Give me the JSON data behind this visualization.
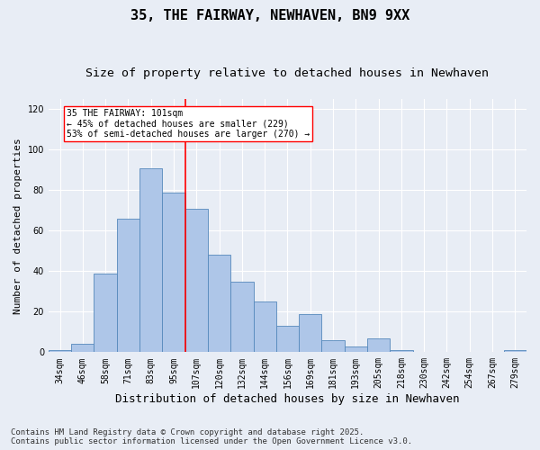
{
  "title": "35, THE FAIRWAY, NEWHAVEN, BN9 9XX",
  "subtitle": "Size of property relative to detached houses in Newhaven",
  "xlabel": "Distribution of detached houses by size in Newhaven",
  "ylabel": "Number of detached properties",
  "footer_line1": "Contains HM Land Registry data © Crown copyright and database right 2025.",
  "footer_line2": "Contains public sector information licensed under the Open Government Licence v3.0.",
  "categories": [
    "34sqm",
    "46sqm",
    "58sqm",
    "71sqm",
    "83sqm",
    "95sqm",
    "107sqm",
    "120sqm",
    "132sqm",
    "144sqm",
    "156sqm",
    "169sqm",
    "181sqm",
    "193sqm",
    "205sqm",
    "218sqm",
    "230sqm",
    "242sqm",
    "254sqm",
    "267sqm",
    "279sqm"
  ],
  "values": [
    1,
    4,
    39,
    66,
    91,
    79,
    71,
    48,
    35,
    25,
    13,
    19,
    6,
    3,
    7,
    1,
    0,
    0,
    0,
    0,
    1
  ],
  "bar_color": "#aec6e8",
  "bar_edge_color": "#5588bb",
  "vline_color": "red",
  "vline_x_idx": 5.5,
  "annotation_text": "35 THE FAIRWAY: 101sqm\n← 45% of detached houses are smaller (229)\n53% of semi-detached houses are larger (270) →",
  "annotation_box_color": "white",
  "annotation_box_edge": "red",
  "ylim": [
    0,
    125
  ],
  "yticks": [
    0,
    20,
    40,
    60,
    80,
    100,
    120
  ],
  "background_color": "#e8edf5",
  "plot_bg_color": "#e8edf5",
  "grid_color": "white",
  "title_fontsize": 11,
  "subtitle_fontsize": 9.5,
  "xlabel_fontsize": 9,
  "ylabel_fontsize": 8,
  "tick_fontsize": 7,
  "annot_fontsize": 7,
  "footer_fontsize": 6.5
}
